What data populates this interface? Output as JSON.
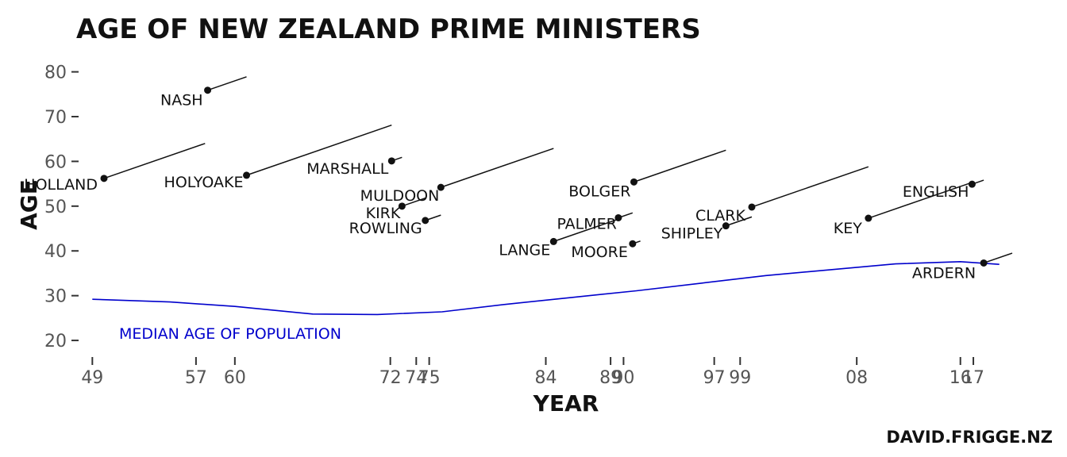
{
  "chart_data": {
    "type": "scatter",
    "title": "AGE OF NEW ZEALAND PRIME MINISTERS",
    "xlabel": "YEAR",
    "ylabel": "AGE",
    "credit": "DAVID.FRIGGE.NZ",
    "xlim": [
      1948,
      2020
    ],
    "ylim": [
      17,
      84
    ],
    "y_ticks": [
      20,
      30,
      40,
      50,
      60,
      70,
      80
    ],
    "x_ticks": [
      {
        "year": 1949,
        "label": "49"
      },
      {
        "year": 1957,
        "label": "57"
      },
      {
        "year": 1960,
        "label": "60"
      },
      {
        "year": 1972,
        "label": "72"
      },
      {
        "year": 1974,
        "label": "74"
      },
      {
        "year": 1975,
        "label": "75"
      },
      {
        "year": 1984,
        "label": "84"
      },
      {
        "year": 1989,
        "label": "89"
      },
      {
        "year": 1990,
        "label": "90"
      },
      {
        "year": 1997,
        "label": "97"
      },
      {
        "year": 1999,
        "label": "99"
      },
      {
        "year": 2008,
        "label": "08"
      },
      {
        "year": 2016,
        "label": "16"
      },
      {
        "year": 2017,
        "label": "17"
      }
    ],
    "grid": false,
    "colors": {
      "points": "#111111",
      "median": "#0000cc"
    },
    "prime_ministers": [
      {
        "name": "HOLLAND",
        "start_year": 1949.9,
        "age": 56.2,
        "end_year": 1957.7
      },
      {
        "name": "NASH",
        "start_year": 1957.9,
        "age": 75.9,
        "end_year": 1960.9
      },
      {
        "name": "HOLYOAKE",
        "start_year": 1960.9,
        "age": 56.9,
        "end_year": 1972.1
      },
      {
        "name": "MARSHALL",
        "start_year": 1972.1,
        "age": 60.1,
        "end_year": 1972.9
      },
      {
        "name": "KIRK",
        "start_year": 1972.9,
        "age": 50.0,
        "end_year": 1974.7
      },
      {
        "name": "ROWLING",
        "start_year": 1974.7,
        "age": 46.8,
        "end_year": 1975.9
      },
      {
        "name": "MULDOON",
        "start_year": 1975.9,
        "age": 54.2,
        "end_year": 1984.6
      },
      {
        "name": "LANGE",
        "start_year": 1984.6,
        "age": 42.1,
        "end_year": 1989.6
      },
      {
        "name": "PALMER",
        "start_year": 1989.6,
        "age": 47.4,
        "end_year": 1990.7
      },
      {
        "name": "MOORE",
        "start_year": 1990.7,
        "age": 41.6,
        "end_year": 1990.8
      },
      {
        "name": "BOLGER",
        "start_year": 1990.8,
        "age": 55.4,
        "end_year": 1997.9
      },
      {
        "name": "SHIPLEY",
        "start_year": 1997.9,
        "age": 45.6,
        "end_year": 1999.9
      },
      {
        "name": "CLARK",
        "start_year": 1999.9,
        "age": 49.8,
        "end_year": 2008.9
      },
      {
        "name": "KEY",
        "start_year": 2008.9,
        "age": 47.3,
        "end_year": 2016.9
      },
      {
        "name": "ENGLISH",
        "start_year": 2016.9,
        "age": 54.9,
        "end_year": 2017.8
      },
      {
        "name": "ARDERN",
        "start_year": 2017.8,
        "age": 37.3,
        "end_year": 2020
      }
    ],
    "median_age_series": {
      "label": "MEDIAN AGE OF POPULATION",
      "x": [
        1949,
        1955,
        1960,
        1966,
        1971,
        1976,
        1981,
        1986,
        1991,
        1996,
        2001,
        2006,
        2011,
        2016,
        2019
      ],
      "y": [
        29.2,
        28.6,
        27.6,
        25.9,
        25.8,
        26.4,
        28.1,
        29.6,
        31.1,
        32.8,
        34.5,
        35.8,
        37.1,
        37.6,
        37.0
      ]
    }
  }
}
